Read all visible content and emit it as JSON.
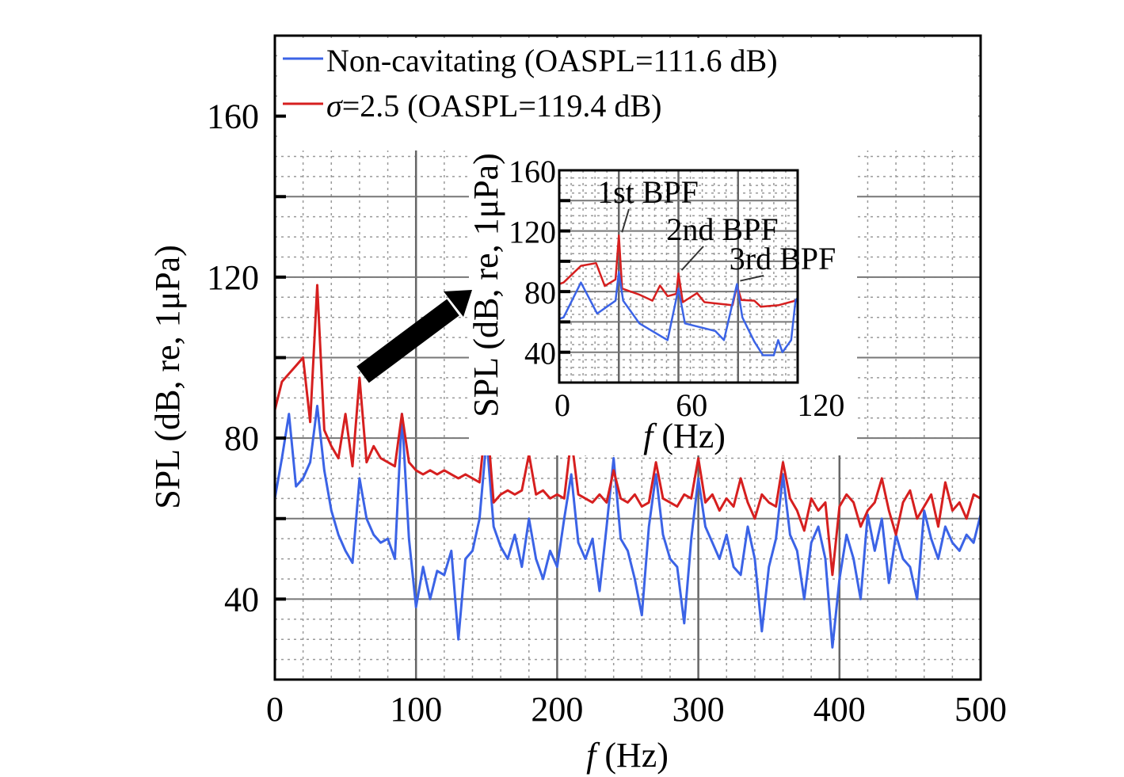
{
  "chart_data": {
    "type": "line",
    "colors": {
      "non_cavitating": "#3b63e6",
      "sigma": "#d61f1f"
    },
    "main": {
      "xlabel_italic": "f",
      "xlabel": " (Hz)",
      "ylabel": "SPL (dB, re, 1μPa)",
      "xlim": [
        0,
        500
      ],
      "ylim": [
        20,
        180
      ],
      "xticks": [
        "0",
        "100",
        "200",
        "300",
        "400",
        "500"
      ],
      "yticks": [
        "40",
        "80",
        "120",
        "160"
      ],
      "grid": true,
      "legend_placement": "top-left",
      "series": [
        {
          "name": "Non-cavitating (OASPL=111.6 dB)",
          "x_start": 0,
          "x_step": 5,
          "values": [
            65,
            75,
            86,
            68,
            70,
            74,
            88,
            72,
            62,
            56,
            52,
            49,
            70,
            60,
            56,
            54,
            55,
            50,
            86,
            55,
            38,
            48,
            40,
            47,
            46,
            52,
            30,
            50,
            52,
            60,
            80,
            58,
            53,
            50,
            56,
            48,
            60,
            50,
            45,
            52,
            48,
            60,
            71,
            54,
            50,
            55,
            42,
            58,
            75,
            55,
            52,
            45,
            36,
            58,
            71,
            56,
            50,
            48,
            34,
            55,
            70,
            58,
            54,
            50,
            56,
            48,
            46,
            58,
            50,
            32,
            48,
            55,
            71,
            56,
            52,
            40,
            54,
            58,
            50,
            28,
            45,
            56,
            50,
            40,
            61,
            52,
            60,
            44,
            56,
            50,
            48,
            40,
            62,
            55,
            50,
            58,
            54,
            52,
            56,
            54,
            61
          ]
        },
        {
          "name_symbol": "σ",
          "name": "=2.5 (OASPL=119.4 dB)",
          "x_start": 0,
          "x_step": 5,
          "values": [
            87,
            94,
            96,
            98,
            100,
            84,
            118,
            82,
            78,
            75,
            86,
            73,
            95,
            74,
            78,
            75,
            74,
            73,
            86,
            74,
            72,
            71,
            72,
            71,
            72,
            71,
            70,
            71,
            70,
            69,
            86,
            64,
            66,
            67,
            66,
            67,
            76,
            66,
            67,
            65,
            66,
            65,
            80,
            66,
            65,
            64,
            66,
            64,
            72,
            65,
            64,
            66,
            63,
            64,
            74,
            65,
            64,
            63,
            66,
            65,
            75,
            64,
            66,
            62,
            65,
            63,
            70,
            64,
            60,
            66,
            64,
            63,
            74,
            65,
            62,
            57,
            65,
            62,
            64,
            46,
            63,
            66,
            64,
            58,
            62,
            64,
            70,
            62,
            56,
            64,
            67,
            60,
            63,
            66,
            58,
            69,
            62,
            64,
            60,
            66,
            65
          ]
        }
      ]
    },
    "inset": {
      "xlabel_italic": "f",
      "xlabel": " (Hz)",
      "ylabel": "SPL (dB, re, 1μPa)",
      "xlim": [
        0,
        110
      ],
      "ylim": [
        20,
        160
      ],
      "xticks": [
        "0",
        "60",
        "120"
      ],
      "yticks": [
        "40",
        "80",
        "120",
        "160"
      ],
      "annotations": [
        {
          "text": "1st BPF",
          "x": 27.5,
          "y": 117
        },
        {
          "text": "2nd BPF",
          "x": 55,
          "y": 92
        },
        {
          "text": "3rd BPF",
          "x": 82,
          "y": 85
        }
      ],
      "series": [
        {
          "name": "Non-cavitating",
          "x": [
            0,
            2,
            10,
            17.5,
            26,
            27.5,
            29.5,
            37,
            50,
            55,
            58,
            72,
            76,
            82,
            84.5,
            90,
            94,
            99,
            101,
            103,
            107,
            109,
            110
          ],
          "y": [
            62,
            63,
            86,
            65.5,
            74,
            93,
            74,
            59,
            48,
            82,
            59,
            54,
            48,
            85,
            63,
            47,
            38,
            38,
            48,
            40,
            48,
            74,
            76
          ]
        },
        {
          "name": "σ=2.5",
          "x": [
            0,
            2,
            10,
            17,
            21,
            26,
            27.5,
            29,
            37,
            43,
            46.5,
            50,
            54,
            55,
            57,
            63.6,
            67,
            80,
            82,
            84,
            90,
            93,
            101,
            109,
            110
          ],
          "y": [
            85,
            86,
            97,
            98.8,
            83.7,
            88,
            117,
            82,
            78,
            74,
            84,
            77,
            78.5,
            92,
            73,
            79,
            73,
            71,
            84,
            74.5,
            74,
            70,
            71,
            74,
            74
          ]
        }
      ]
    }
  }
}
